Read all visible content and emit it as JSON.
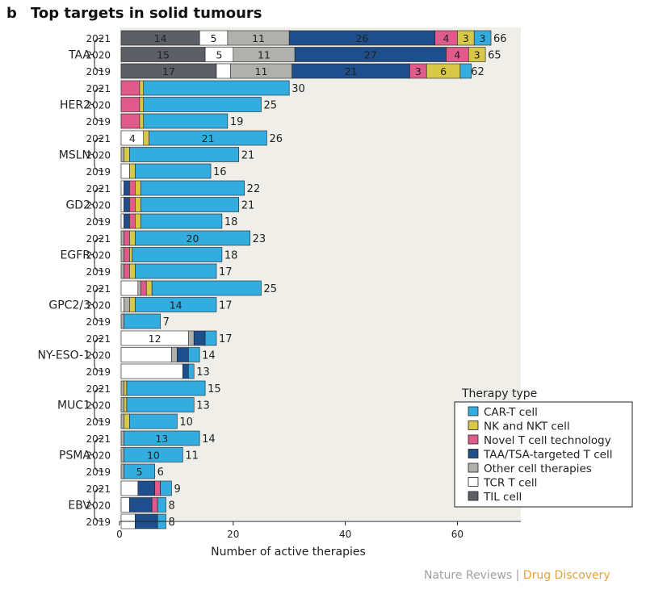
{
  "panel_letter": "b",
  "chart_data": {
    "type": "bar",
    "orientation": "horizontal",
    "stacked": true,
    "title": "Top targets in solid tumours",
    "xlabel": "Number of active therapies",
    "xlim": [
      0,
      72
    ],
    "xticks": [
      0,
      20,
      40,
      60
    ],
    "legend": {
      "title": "Therapy type",
      "placement": "bottom-right",
      "items": [
        {
          "name": "CAR-T cell",
          "color": "#33ade0"
        },
        {
          "name": "NK and NKT cell",
          "color": "#d8c847"
        },
        {
          "name": "Novel T cell technology",
          "color": "#e05a8c"
        },
        {
          "name": "TAA/TSA-targeted T cell",
          "color": "#1e4f8c"
        },
        {
          "name": "Other cell therapies",
          "color": "#b0b0ac"
        },
        {
          "name": "TCR T cell",
          "color": "#ffffff"
        },
        {
          "name": "TIL cell",
          "color": "#5c5f66"
        }
      ]
    },
    "stack_order": [
      "TIL cell",
      "TCR T cell",
      "Other cell therapies",
      "TAA/TSA-targeted T cell",
      "Novel T cell technology",
      "NK and NKT cell",
      "CAR-T cell"
    ],
    "groups": [
      {
        "target": "TAA",
        "bars": [
          {
            "year": "2021",
            "total": 66,
            "segments": [
              14,
              5,
              11,
              26,
              4,
              3,
              3
            ],
            "labels": [
              "14",
              "5",
              "11",
              "26",
              "4",
              "3",
              "3"
            ]
          },
          {
            "year": "2020",
            "total": 65,
            "segments": [
              15,
              5,
              11,
              27,
              4,
              3,
              0
            ],
            "labels": [
              "15",
              "5",
              "11",
              "27",
              "4",
              "3",
              ""
            ]
          },
          {
            "year": "2019",
            "total": 62,
            "segments": [
              17,
              2.5,
              11,
              21,
              3,
              6,
              2
            ],
            "labels": [
              "17",
              "",
              "11",
              "21",
              "3",
              "6",
              ""
            ]
          }
        ]
      },
      {
        "target": "HER2",
        "bars": [
          {
            "year": "2021",
            "total": 30,
            "segments": [
              0,
              0,
              0,
              0,
              3.3,
              0.7,
              26
            ],
            "labels": []
          },
          {
            "year": "2020",
            "total": 25,
            "segments": [
              0,
              0,
              0,
              0,
              3.3,
              0.7,
              21
            ],
            "labels": []
          },
          {
            "year": "2019",
            "total": 19,
            "segments": [
              0,
              0,
              0,
              0,
              3.3,
              0.7,
              15
            ],
            "labels": []
          }
        ]
      },
      {
        "target": "MSLN",
        "bars": [
          {
            "year": "2021",
            "total": 26,
            "segments": [
              0,
              4,
              0,
              0,
              0,
              1,
              21
            ],
            "labels": [
              "",
              "4",
              "",
              "",
              "",
              "",
              "21"
            ]
          },
          {
            "year": "2020",
            "total": 21,
            "segments": [
              0,
              0,
              0.5,
              0,
              0,
              1,
              19.5
            ],
            "labels": []
          },
          {
            "year": "2019",
            "total": 16,
            "segments": [
              0,
              1.5,
              0,
              0,
              0,
              1,
              13.5
            ],
            "labels": []
          }
        ]
      },
      {
        "target": "GD2",
        "bars": [
          {
            "year": "2021",
            "total": 22,
            "segments": [
              0,
              0.5,
              0,
              1,
              1,
              1,
              18.5
            ],
            "labels": []
          },
          {
            "year": "2020",
            "total": 21,
            "segments": [
              0,
              0.5,
              0,
              1,
              1,
              1,
              17.5
            ],
            "labels": []
          },
          {
            "year": "2019",
            "total": 18,
            "segments": [
              0,
              0.5,
              0,
              1,
              1,
              1,
              14.5
            ],
            "labels": []
          }
        ]
      },
      {
        "target": "EGFR",
        "bars": [
          {
            "year": "2021",
            "total": 23,
            "segments": [
              0,
              0,
              0.5,
              0,
              1,
              1,
              20.5
            ],
            "labels": [
              "",
              "",
              "",
              "",
              "",
              "",
              "20"
            ]
          },
          {
            "year": "2020",
            "total": 18,
            "segments": [
              0,
              0,
              0.5,
              0,
              1,
              0.5,
              16
            ],
            "labels": []
          },
          {
            "year": "2019",
            "total": 17,
            "segments": [
              0,
              0,
              0.5,
              0,
              1,
              1,
              14.5
            ],
            "labels": []
          }
        ]
      },
      {
        "target": "GPC2/3",
        "bars": [
          {
            "year": "2021",
            "total": 25,
            "segments": [
              0,
              3,
              0.5,
              0,
              1,
              1,
              19.5
            ],
            "labels": []
          },
          {
            "year": "2020",
            "total": 17,
            "segments": [
              0,
              0.5,
              1,
              0,
              0,
              1,
              14.5
            ],
            "labels": [
              "",
              "",
              "",
              "",
              "",
              "",
              "14"
            ]
          },
          {
            "year": "2019",
            "total": 7,
            "segments": [
              0,
              0,
              0.5,
              0,
              0,
              0,
              6.5
            ],
            "labels": []
          }
        ]
      },
      {
        "target": "NY-ESO-1",
        "bars": [
          {
            "year": "2021",
            "total": 17,
            "segments": [
              0,
              12,
              1,
              2,
              0,
              0,
              2
            ],
            "labels": [
              "",
              "12",
              "",
              "",
              "",
              "",
              ""
            ]
          },
          {
            "year": "2020",
            "total": 14,
            "segments": [
              0,
              9,
              1,
              2,
              0,
              0,
              2
            ],
            "labels": []
          },
          {
            "year": "2019",
            "total": 13,
            "segments": [
              0,
              11,
              0,
              1,
              0,
              0,
              1
            ],
            "labels": []
          }
        ]
      },
      {
        "target": "MUC1",
        "bars": [
          {
            "year": "2021",
            "total": 15,
            "segments": [
              0,
              0,
              0.5,
              0,
              0,
              0.5,
              14
            ],
            "labels": []
          },
          {
            "year": "2020",
            "total": 13,
            "segments": [
              0,
              0,
              0.5,
              0,
              0,
              0.5,
              12
            ],
            "labels": []
          },
          {
            "year": "2019",
            "total": 10,
            "segments": [
              0,
              0,
              0.5,
              0,
              0,
              1,
              8.5
            ],
            "labels": []
          }
        ]
      },
      {
        "target": "PSMA",
        "bars": [
          {
            "year": "2021",
            "total": 14,
            "segments": [
              0,
              0,
              0.5,
              0,
              0,
              0,
              13.5
            ],
            "labels": [
              "",
              "",
              "",
              "",
              "",
              "",
              "13"
            ]
          },
          {
            "year": "2020",
            "total": 11,
            "segments": [
              0,
              0,
              0.5,
              0,
              0,
              0,
              10.5
            ],
            "labels": [
              "",
              "",
              "",
              "",
              "",
              "",
              "10"
            ]
          },
          {
            "year": "2019",
            "total": 6,
            "segments": [
              0,
              0,
              0.5,
              0,
              0,
              0,
              5.5
            ],
            "labels": [
              "",
              "",
              "",
              "",
              "",
              "",
              "5"
            ]
          }
        ]
      },
      {
        "target": "EBV",
        "bars": [
          {
            "year": "2021",
            "total": 9,
            "segments": [
              0,
              3,
              0,
              3,
              1,
              0,
              2
            ],
            "labels": []
          },
          {
            "year": "2020",
            "total": 8,
            "segments": [
              0,
              1.5,
              0,
              4,
              1,
              0,
              1.5
            ],
            "labels": []
          },
          {
            "year": "2019",
            "total": 8,
            "segments": [
              0,
              2.5,
              0,
              4,
              0,
              0,
              1.5
            ],
            "labels": []
          }
        ]
      }
    ]
  },
  "credit": {
    "part1": "Nature Reviews",
    "separator": " | ",
    "part2": "Drug Discovery"
  },
  "colors": {
    "plot_bg": "#efeee9",
    "bar_outline": "#222222",
    "credit_grey": "#a0a0a0",
    "credit_orange": "#e8a23a"
  }
}
